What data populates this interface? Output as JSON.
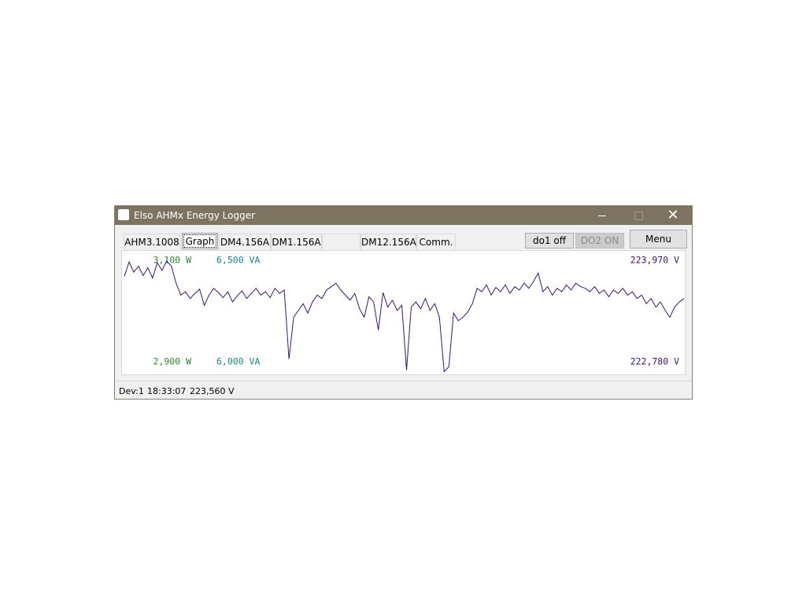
{
  "window": {
    "title": "Elso AHMx Energy Logger"
  },
  "tabs": [
    "AHM3.1008",
    "Graph",
    "DM4.156A",
    "DM1.156A",
    "DM12.156A",
    "Comm."
  ],
  "buttons": [
    "do1 off",
    "DO2 ON",
    "Menu"
  ],
  "status": [
    "Dev:1",
    "18:33:07",
    "223,560 V"
  ],
  "chart_data": {
    "type": "line",
    "ylim": [
      222630,
      224070
    ],
    "yticks": [
      {
        "value": 223970,
        "label": "223,970 V"
      },
      {
        "value": 222780,
        "label": "222,780 V"
      }
    ],
    "w_ticks": [
      {
        "value": 3100,
        "label": "3,100 W"
      },
      {
        "value": 2900,
        "label": "2,900 W"
      }
    ],
    "va_ticks": [
      {
        "value": 6500,
        "label": "6,500 VA"
      },
      {
        "value": 6000,
        "label": "6,000 VA"
      }
    ],
    "series": [
      {
        "color": "#3c1470",
        "values": [
          223780,
          223950,
          223830,
          223900,
          223790,
          223880,
          223760,
          223940,
          223850,
          223960,
          223900,
          223700,
          223560,
          223600,
          223520,
          223580,
          223630,
          223440,
          223560,
          223640,
          223590,
          223530,
          223600,
          223480,
          223550,
          223610,
          223520,
          223580,
          223640,
          223560,
          223600,
          223530,
          223640,
          223580,
          223620,
          222810,
          223300,
          223380,
          223460,
          223350,
          223480,
          223560,
          223520,
          223620,
          223660,
          223700,
          223620,
          223560,
          223500,
          223580,
          223400,
          223300,
          223540,
          223480,
          223150,
          223590,
          223420,
          223500,
          223380,
          223440,
          222680,
          223420,
          223480,
          223400,
          223520,
          223380,
          223460,
          223300,
          222660,
          222720,
          223350,
          223260,
          223300,
          223360,
          223460,
          223640,
          223600,
          223680,
          223560,
          223650,
          223600,
          223680,
          223580,
          223660,
          223620,
          223700,
          223640,
          223720,
          223820,
          223600,
          223660,
          223560,
          223640,
          223600,
          223680,
          223620,
          223700,
          223660,
          223640,
          223600,
          223660,
          223580,
          223620,
          223540,
          223620,
          223580,
          223640,
          223560,
          223600,
          223520,
          223560,
          223460,
          223520,
          223420,
          223480,
          223380,
          223300,
          223420,
          223480,
          223520
        ]
      }
    ]
  }
}
